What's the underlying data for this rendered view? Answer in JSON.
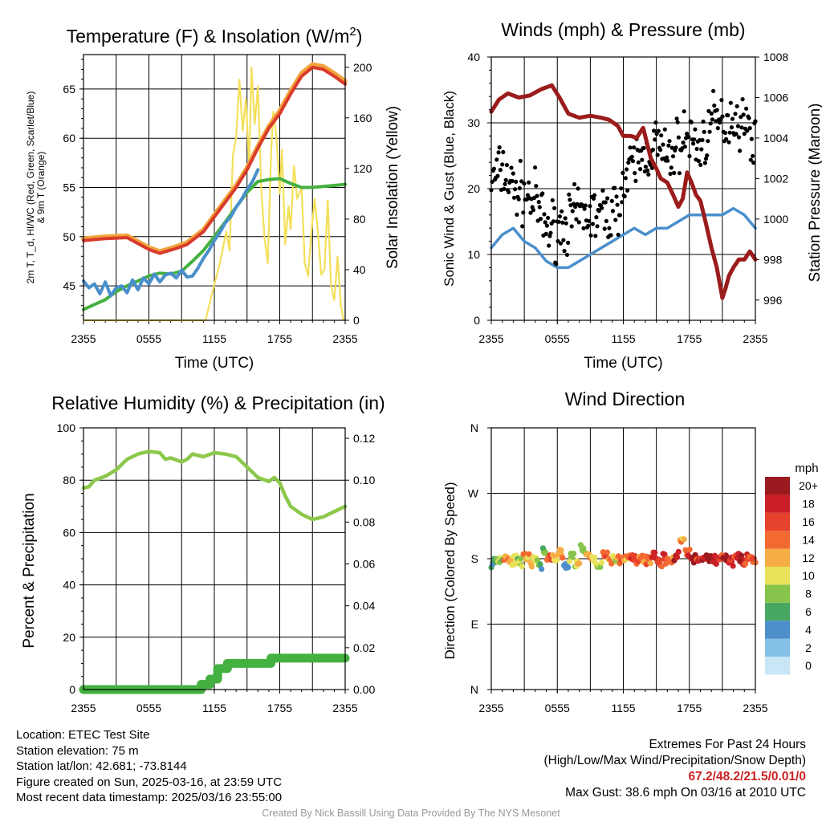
{
  "chart_data": [
    {
      "type": "line",
      "title": "Temperature (F) & Insolation (W/m²)",
      "xlabel": "Time (UTC)",
      "ylabel": "2m T, T_d, HI/WC (Red, Green, Scarlet/Blue) & 9m T (Orange)",
      "ylabel_right": "Solar Insolation (Yellow)",
      "x_ticks": [
        "2355",
        "0555",
        "1155",
        "1755",
        "2355"
      ],
      "x_range_hours": [
        0,
        24
      ],
      "ylim": [
        41.5,
        68.5
      ],
      "y_ticks": [
        45,
        50,
        55,
        60,
        65
      ],
      "y2lim": [
        0,
        210
      ],
      "y2_ticks": [
        0,
        40,
        80,
        120,
        160,
        200
      ],
      "grid": true,
      "series": [
        {
          "name": "2m T",
          "color": "#d93b2b",
          "axis": "left",
          "x": [
            0,
            2,
            4,
            5,
            6,
            7,
            8.5,
            9.5,
            11,
            12,
            13,
            14,
            15,
            16,
            17,
            18,
            19,
            20,
            21,
            22,
            23,
            24
          ],
          "y": [
            49.6,
            49.8,
            49.9,
            49.3,
            48.7,
            48.3,
            48.8,
            49.2,
            50.5,
            52.0,
            53.5,
            55.0,
            56.8,
            59.0,
            61.0,
            62.5,
            64.5,
            66.3,
            67.2,
            67.0,
            66.3,
            65.5
          ]
        },
        {
          "name": "9m T",
          "color": "#f2a33a",
          "axis": "left",
          "x": [
            0,
            2,
            4,
            5,
            6,
            7,
            8.5,
            9.5,
            11,
            12,
            13,
            14,
            15,
            16,
            17,
            18,
            19,
            20,
            21,
            22,
            23,
            24
          ],
          "y": [
            49.8,
            50.0,
            50.1,
            49.5,
            48.9,
            48.5,
            49.0,
            49.4,
            50.7,
            52.2,
            53.7,
            55.2,
            57.0,
            59.2,
            61.2,
            62.8,
            64.8,
            66.6,
            67.5,
            67.3,
            66.6,
            65.8
          ]
        },
        {
          "name": "2m Td",
          "color": "#44b040",
          "axis": "left",
          "x": [
            0,
            2,
            3,
            4,
            5,
            6,
            7,
            8,
            9,
            10,
            11,
            12,
            13,
            14,
            15,
            16,
            17,
            18,
            19,
            20,
            21,
            22,
            23,
            24
          ],
          "y": [
            42.6,
            43.6,
            44.4,
            45.0,
            45.5,
            46.0,
            46.3,
            46.2,
            46.5,
            47.5,
            48.6,
            50.0,
            51.5,
            53.0,
            54.5,
            55.6,
            55.8,
            55.9,
            55.4,
            55.0,
            55.0,
            55.1,
            55.2,
            55.3
          ]
        },
        {
          "name": "HI/WC",
          "color": "#4a8fcc",
          "axis": "left",
          "x": [
            0,
            0.5,
            1,
            1.5,
            2,
            2.5,
            3,
            3.5,
            4,
            4.5,
            5,
            5.5,
            6,
            6.5,
            7,
            7.5,
            8,
            8.5,
            9,
            9.5,
            10,
            10.5,
            11,
            11.5,
            12,
            12.5,
            13,
            13.5,
            14,
            14.5,
            15,
            15.5,
            16
          ],
          "y": [
            45.5,
            44.8,
            45.2,
            44.2,
            45.4,
            44.0,
            44.8,
            45.0,
            44.3,
            45.6,
            44.6,
            45.8,
            45.2,
            46.2,
            45.4,
            46.1,
            46.3,
            45.8,
            46.6,
            45.9,
            46.0,
            46.8,
            47.8,
            48.6,
            49.6,
            50.4,
            51.4,
            52.0,
            53.0,
            53.8,
            54.8,
            55.6,
            56.8
          ]
        },
        {
          "name": "Solar Insolation",
          "color": "#f4df5a",
          "axis": "right",
          "x": [
            0,
            11.2,
            11.7,
            12.5,
            13.1,
            13.4,
            13.7,
            14.0,
            14.3,
            14.6,
            14.9,
            15.2,
            15.4,
            15.7,
            16.0,
            16.3,
            16.6,
            16.9,
            17.2,
            17.4,
            17.7,
            18.0,
            18.2,
            18.5,
            18.8,
            19.0,
            19.3,
            19.6,
            20.0,
            20.3,
            20.6,
            20.9,
            21.2,
            21.5,
            21.8,
            22.1,
            22.4,
            22.7,
            23.0,
            23.3,
            23.6,
            23.85
          ],
          "y": [
            0,
            0,
            18,
            45,
            70,
            55,
            130,
            145,
            190,
            150,
            175,
            120,
            200,
            155,
            185,
            105,
            65,
            45,
            130,
            165,
            145,
            100,
            135,
            60,
            90,
            72,
            122,
            96,
            105,
            45,
            35,
            70,
            96,
            70,
            36,
            40,
            95,
            28,
            16,
            50,
            12,
            0
          ]
        }
      ]
    },
    {
      "type": "line",
      "title": "Winds (mph) & Pressure (mb)",
      "xlabel": "Time (UTC)",
      "ylabel": "Sonic Wind & Gust (Blue, Black)",
      "ylabel_right": "Station Pressure (Maroon)",
      "x_ticks": [
        "2355",
        "0555",
        "1155",
        "1755",
        "2355"
      ],
      "x_range_hours": [
        0,
        24
      ],
      "ylim": [
        0,
        40
      ],
      "y_ticks": [
        0,
        10,
        20,
        30,
        40
      ],
      "y2lim": [
        995.0,
        1008.0
      ],
      "y2_ticks": [
        996,
        998,
        1000,
        1002,
        1004,
        1006,
        1008
      ],
      "grid": true,
      "series": [
        {
          "name": "Sonic Wind",
          "color": "#4a8fcc",
          "axis": "left",
          "x": [
            0,
            1,
            2,
            3,
            4,
            5,
            6,
            7,
            8,
            9,
            10,
            11,
            12,
            13,
            14,
            15,
            16,
            17,
            18,
            19,
            20,
            21,
            22,
            23,
            24
          ],
          "y": [
            11,
            13,
            14,
            12,
            11,
            9,
            8,
            8,
            9,
            10,
            11,
            12,
            13,
            14,
            13,
            14,
            14,
            15,
            16,
            16,
            16,
            16,
            17,
            16,
            14
          ]
        },
        {
          "name": "Gust",
          "color": "#000000",
          "axis": "left",
          "x": [
            0,
            1,
            2,
            3,
            4,
            5,
            6,
            7,
            8,
            9,
            10,
            11,
            12,
            13,
            14,
            15,
            16,
            17,
            18,
            19,
            20,
            21,
            22,
            23,
            24
          ],
          "y": [
            21,
            23,
            20,
            19,
            18,
            14,
            14,
            15,
            16,
            16,
            16,
            16,
            20,
            24,
            25,
            27,
            24,
            27,
            28,
            26,
            30,
            30,
            31,
            30,
            27
          ]
        },
        {
          "name": "Station Pressure",
          "color": "#9b1c1c",
          "axis": "right",
          "x": [
            0,
            0.7,
            1.5,
            2.5,
            3.5,
            4.5,
            5.5,
            6.2,
            7.0,
            8.0,
            9.0,
            10.0,
            10.7,
            11.5,
            12.0,
            12.7,
            13.2,
            13.8,
            14.5,
            15.0,
            15.4,
            16.0,
            16.6,
            17.0,
            17.4,
            17.8,
            18.2,
            18.6,
            19.0,
            19.5,
            20.0,
            20.5,
            21.0,
            21.3,
            21.6,
            22.0,
            22.5,
            23.0,
            23.5,
            24.0
          ],
          "y": [
            1005.3,
            1005.9,
            1006.2,
            1006.0,
            1006.1,
            1006.4,
            1006.6,
            1006.0,
            1005.2,
            1005.0,
            1005.1,
            1005.0,
            1004.9,
            1004.6,
            1004.1,
            1004.1,
            1004.0,
            1004.5,
            1003.0,
            1002.5,
            1002.0,
            1001.8,
            1001.1,
            1000.6,
            1001.0,
            1002.3,
            1001.8,
            1001.2,
            1000.9,
            999.8,
            998.6,
            997.6,
            996.1,
            996.6,
            997.2,
            997.6,
            998.0,
            998.0,
            998.4,
            998.0
          ]
        }
      ]
    },
    {
      "type": "line",
      "title": "Relative Humidity (%) & Precipitation (in)",
      "xlabel": "",
      "ylabel": "Percent & Precipitation",
      "x_ticks": [
        "2355",
        "0555",
        "1155",
        "1755",
        "2355"
      ],
      "x_range_hours": [
        0,
        24
      ],
      "ylim": [
        0,
        100
      ],
      "y_ticks": [
        0,
        20,
        40,
        60,
        80,
        100
      ],
      "y2lim": [
        0,
        0.125
      ],
      "y2_ticks": [
        0.0,
        0.02,
        0.04,
        0.06,
        0.08,
        0.1,
        0.12
      ],
      "grid": true,
      "series": [
        {
          "name": "Relative Humidity",
          "color": "#8cc84b",
          "axis": "left",
          "x": [
            0,
            0.5,
            1,
            2,
            3,
            4,
            5,
            6,
            7,
            7.5,
            8,
            9,
            9.5,
            10,
            11,
            12,
            13,
            14,
            15,
            16,
            17,
            17.5,
            18,
            18.5,
            19,
            20,
            21,
            22,
            23,
            24
          ],
          "y": [
            77,
            77.5,
            80,
            81.5,
            84,
            88,
            90,
            91,
            90.5,
            88,
            88.5,
            87,
            88,
            90,
            89,
            90.5,
            90,
            89,
            85,
            81,
            79.5,
            81,
            79,
            74,
            70,
            67,
            65,
            66,
            68,
            70
          ]
        },
        {
          "name": "Precipitation",
          "color": "#44b040",
          "axis": "right",
          "x": [
            0,
            10.8,
            10.8,
            11.6,
            11.6,
            12.3,
            12.3,
            13.2,
            13.2,
            17.2,
            17.2,
            24
          ],
          "y": [
            0.0,
            0.0,
            0.0025,
            0.0025,
            0.005,
            0.005,
            0.01,
            0.01,
            0.0125,
            0.0125,
            0.015,
            0.015
          ]
        }
      ]
    },
    {
      "type": "scatter",
      "title": "Wind Direction",
      "xlabel": "",
      "ylabel": "Direction (Colored By Speed)",
      "x_ticks": [
        "2355",
        "0555",
        "1155",
        "1755",
        "2355"
      ],
      "x_range_hours": [
        0,
        24
      ],
      "y_ticks": [
        "N",
        "E",
        "S",
        "W",
        "N"
      ],
      "ylim": [
        0,
        360
      ],
      "grid": true,
      "colorbar": {
        "title": "mph",
        "labels": [
          "0",
          "2",
          "4",
          "6",
          "8",
          "10",
          "12",
          "14",
          "16",
          "18",
          "20+"
        ],
        "colors": [
          "#c8e6f5",
          "#85c1e9",
          "#4c8fcb",
          "#48a761",
          "#86c44b",
          "#e8e25a",
          "#f7ad45",
          "#f26a32",
          "#e6422c",
          "#cb2027",
          "#9b1a1f"
        ]
      },
      "series": [
        {
          "name": "Direction",
          "x": [
            0.2,
            0.8,
            1.4,
            2.0,
            2.6,
            3.2,
            3.8,
            4.4,
            4.8,
            5.2,
            5.8,
            6.3,
            6.8,
            7.3,
            7.8,
            8.3,
            8.8,
            9.3,
            9.8,
            10.3,
            10.8,
            11.3,
            11.8,
            12.3,
            12.8,
            13.3,
            13.8,
            14.3,
            14.8,
            15.3,
            15.8,
            16.3,
            16.8,
            17.3,
            17.8,
            18.3,
            18.8,
            19.3,
            19.8,
            20.3,
            20.8,
            21.3,
            21.8,
            22.3,
            22.8,
            23.3,
            23.8
          ],
          "y": [
            175,
            180,
            182,
            178,
            174,
            180,
            176,
            172,
            190,
            184,
            178,
            186,
            168,
            182,
            176,
            192,
            186,
            178,
            170,
            186,
            180,
            176,
            178,
            182,
            180,
            178,
            180,
            178,
            182,
            176,
            180,
            178,
            184,
            206,
            190,
            180,
            178,
            180,
            182,
            178,
            180,
            184,
            176,
            182,
            178,
            180,
            176
          ],
          "speed": [
            6,
            8,
            12,
            10,
            8,
            12,
            10,
            6,
            8,
            14,
            10,
            12,
            4,
            8,
            10,
            8,
            12,
            10,
            8,
            14,
            12,
            10,
            14,
            12,
            16,
            14,
            12,
            14,
            16,
            14,
            16,
            14,
            18,
            12,
            16,
            18,
            16,
            18,
            20,
            18,
            16,
            20,
            18,
            16,
            18,
            16,
            14
          ]
        }
      ]
    }
  ],
  "info": {
    "location": "Location: ETEC Test Site",
    "elevation": "Station elevation: 75 m",
    "latlon": "Station lat/lon: 42.681; -73.8144",
    "created": "Figure created on Sun, 2025-03-16, at 23:59 UTC",
    "recent": "Most recent data timestamp: 2025/03/16 23:55:00"
  },
  "extremes": {
    "heading": "Extremes For Past 24 Hours",
    "fields": "(High/Low/Max Wind/Precipitation/Snow Depth)",
    "values": "67.2/48.2/21.5/0.01/0",
    "max_gust": "Max Gust: 38.6 mph On 03/16 at 2010 UTC"
  },
  "credit": "Created By Nick Bassill Using Data Provided By The NYS Mesonet"
}
